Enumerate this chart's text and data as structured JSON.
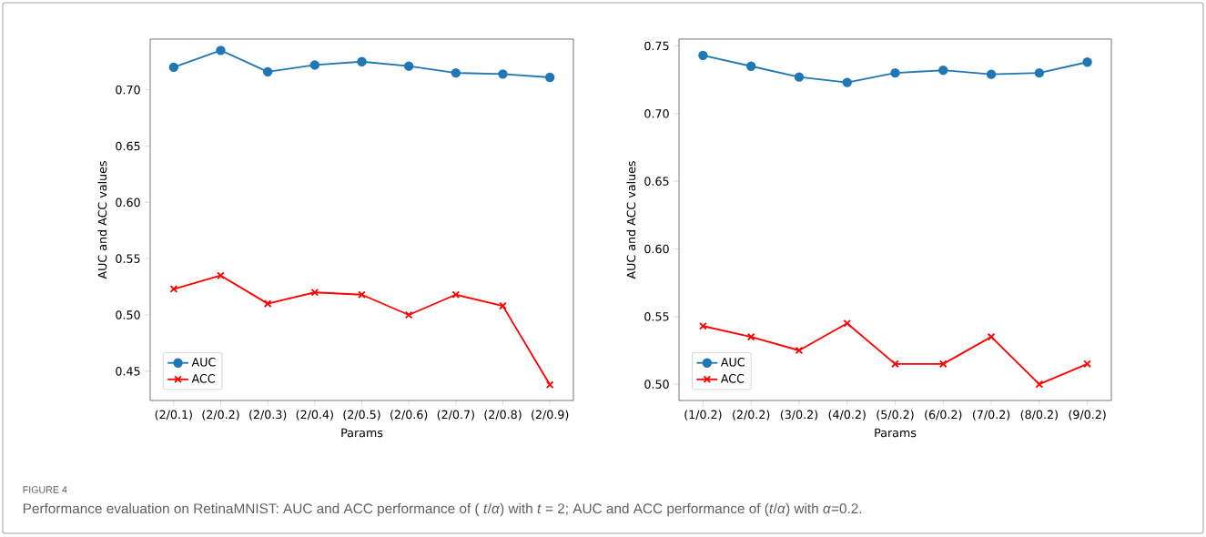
{
  "chart_data": [
    {
      "type": "line",
      "xlabel": "Params",
      "ylabel": "AUC and ACC values",
      "categories": [
        "(2/0.1)",
        "(2/0.2)",
        "(2/0.3)",
        "(2/0.4)",
        "(2/0.5)",
        "(2/0.6)",
        "(2/0.7)",
        "(2/0.8)",
        "(2/0.9)"
      ],
      "series": [
        {
          "name": "AUC",
          "color": "#1f77b4",
          "marker": "circle",
          "values": [
            0.72,
            0.735,
            0.716,
            0.722,
            0.725,
            0.721,
            0.715,
            0.714,
            0.711
          ]
        },
        {
          "name": "ACC",
          "color": "#ff0000",
          "marker": "cross",
          "values": [
            0.523,
            0.535,
            0.51,
            0.52,
            0.518,
            0.5,
            0.518,
            0.508,
            0.438
          ]
        }
      ],
      "ylim": [
        0.424,
        0.745
      ],
      "yticks": [
        0.45,
        {
          "value": 0.5,
          "label": "0.50"
        },
        0.55,
        {
          "value": 0.6,
          "label": "0.60"
        },
        0.65,
        {
          "value": 0.7,
          "label": "0.70"
        }
      ],
      "legend": "bottom left",
      "grid": false,
      "annotations": [
        "FIGURE 4",
        "Performance evaluation on RetinaMNIST: AUC and ACC performance of ( *t*/*α*) with *t* = 2; AUC and ACC performance of (*t*/*α*) with *α*=0.2."
      ]
    },
    {
      "type": "line",
      "xlabel": "Params",
      "ylabel": "AUC and ACC values",
      "categories": [
        "(1/0.2)",
        "(2/0.2)",
        "(3/0.2)",
        "(4/0.2)",
        "(5/0.2)",
        "(6/0.2)",
        "(7/0.2)",
        "(8/0.2)",
        "(9/0.2)"
      ],
      "series": [
        {
          "name": "AUC",
          "color": "#1f77b4",
          "marker": "circle",
          "values": [
            0.743,
            0.735,
            0.727,
            0.723,
            0.73,
            0.732,
            0.729,
            0.73,
            0.738
          ]
        },
        {
          "name": "ACC",
          "color": "#ff0000",
          "marker": "cross",
          "values": [
            0.543,
            0.535,
            0.525,
            0.545,
            0.515,
            0.515,
            0.535,
            0.5,
            0.515
          ]
        }
      ],
      "ylim": [
        0.488,
        0.755
      ],
      "yticks": [
        {
          "value": 0.5,
          "label": "0.50"
        },
        0.55,
        {
          "value": 0.6,
          "label": "0.60"
        },
        0.65,
        {
          "value": 0.7,
          "label": "0.70"
        },
        0.75
      ],
      "legend": "bottom left",
      "grid": false
    }
  ]
}
